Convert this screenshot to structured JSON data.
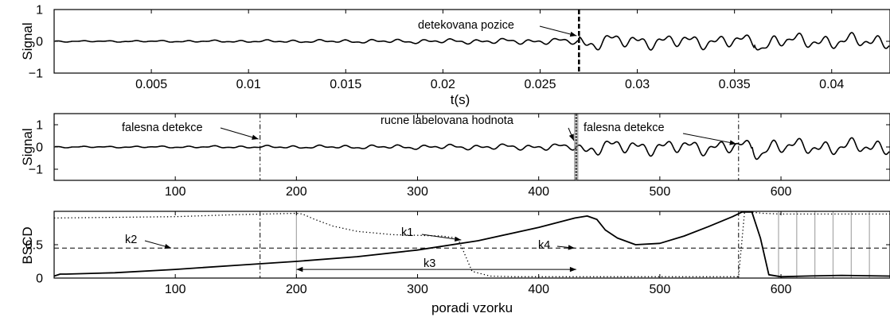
{
  "chart_data": [
    {
      "type": "line",
      "title": "",
      "xlabel": "t(s)",
      "ylabel": "Signal",
      "xlim": [
        0,
        0.043
      ],
      "ylim": [
        -1,
        1
      ],
      "grid": false,
      "xticks": [
        "0.005",
        "0.01",
        "0.015",
        "0.02",
        "0.025",
        "0.03",
        "0.035",
        "0.04"
      ],
      "xtick_values": [
        0.005,
        0.01,
        0.015,
        0.02,
        0.025,
        0.03,
        0.035,
        0.04
      ],
      "yticks": [
        "1",
        "0",
        "−1"
      ],
      "ytick_values": [
        1,
        0,
        -1
      ],
      "vlines": [
        {
          "x": 0.027,
          "style": "dashed-thick"
        }
      ],
      "annotations": [
        {
          "text": "detekovana pozice",
          "x": 0.027,
          "y": 0.1
        }
      ]
    },
    {
      "type": "line",
      "title": "",
      "xlabel": "",
      "ylabel": "Signal",
      "xlim": [
        0,
        690
      ],
      "ylim": [
        -1.5,
        1.5
      ],
      "grid": false,
      "xticks": [
        "100",
        "200",
        "300",
        "400",
        "500",
        "600"
      ],
      "xtick_values": [
        100,
        200,
        300,
        400,
        500,
        600
      ],
      "yticks": [
        "1",
        "0",
        "−1"
      ],
      "ytick_values": [
        1,
        0,
        -1
      ],
      "vlines": [
        {
          "x": 170,
          "style": "dashdot"
        },
        {
          "x": 431,
          "style": "dense"
        },
        {
          "x": 565,
          "style": "dashdot"
        }
      ],
      "annotations": [
        {
          "text": "falesna detekce",
          "x": 170,
          "y": 0.1
        },
        {
          "text": "rucne labelovana hodnota",
          "x": 431,
          "y": 0.1
        },
        {
          "text": "falesna detekce",
          "x": 565,
          "y": -0.1
        }
      ]
    },
    {
      "type": "line",
      "title": "",
      "xlabel": "poradi vzorku",
      "ylabel": "BSCD",
      "xlim": [
        0,
        690
      ],
      "ylim": [
        0,
        1
      ],
      "grid": false,
      "xticks": [
        "100",
        "200",
        "300",
        "400",
        "500",
        "600"
      ],
      "xtick_values": [
        100,
        200,
        300,
        400,
        500,
        600
      ],
      "yticks": [
        "0",
        "0.5"
      ],
      "ytick_values": [
        0,
        0.5
      ],
      "series": [
        {
          "style": "solid",
          "x": [
            0,
            5,
            10,
            50,
            100,
            150,
            200,
            250,
            300,
            350,
            400,
            430,
            440,
            448,
            455,
            465,
            480,
            500,
            520,
            540,
            560,
            568,
            576,
            583,
            590,
            600,
            620,
            650,
            690
          ],
          "y": [
            0.03,
            0.06,
            0.06,
            0.08,
            0.13,
            0.19,
            0.25,
            0.32,
            0.42,
            0.56,
            0.76,
            0.9,
            0.93,
            0.88,
            0.72,
            0.6,
            0.5,
            0.52,
            0.63,
            0.77,
            0.92,
            0.99,
            0.99,
            0.6,
            0.05,
            0.02,
            0.03,
            0.04,
            0.03
          ]
        },
        {
          "style": "dotted",
          "x": [
            0,
            100,
            150,
            200,
            205,
            215,
            230,
            250,
            280,
            300,
            320,
            333,
            338,
            345,
            360,
            380,
            430,
            500,
            565,
            570,
            575,
            580,
            585,
            600,
            690
          ],
          "y": [
            0.9,
            0.92,
            0.95,
            0.97,
            0.96,
            0.88,
            0.78,
            0.7,
            0.65,
            0.64,
            0.63,
            0.6,
            0.4,
            0.1,
            0.03,
            0.02,
            0.02,
            0.02,
            0.02,
            1.0,
            0.99,
            0.98,
            0.97,
            0.96,
            0.96
          ]
        }
      ],
      "hlines": [
        {
          "y": 0.45,
          "style": "dashed"
        }
      ],
      "vlines": [
        {
          "x": 170,
          "style": "dashdot"
        },
        {
          "x": 200,
          "style": "gray"
        },
        {
          "x": 565,
          "style": "dashdot"
        },
        {
          "x": 598,
          "style": "gray"
        },
        {
          "x": 613,
          "style": "gray"
        },
        {
          "x": 628,
          "style": "gray"
        },
        {
          "x": 643,
          "style": "gray"
        },
        {
          "x": 658,
          "style": "gray"
        },
        {
          "x": 673,
          "style": "gray"
        }
      ],
      "interval": {
        "x0": 200,
        "x1": 431,
        "y": 0.13,
        "label": "k3"
      },
      "annotations": [
        {
          "text": "k2",
          "x": 98,
          "y": 0.45,
          "target_x": 145
        },
        {
          "text": "k1",
          "x": 292,
          "y": 0.64,
          "target_x": 336
        },
        {
          "text": "k4",
          "x": 403,
          "y": 0.45,
          "target_x": 431
        }
      ]
    }
  ]
}
